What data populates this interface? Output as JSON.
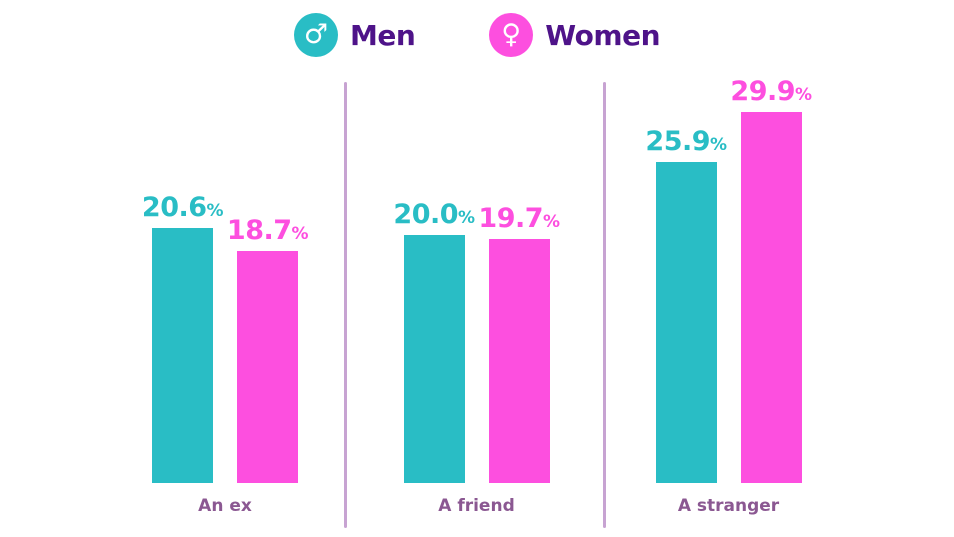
{
  "legend": {
    "items": [
      {
        "label": "Men",
        "icon": "male-icon",
        "symbol": "♂",
        "color": "#29bdc5"
      },
      {
        "label": "Women",
        "icon": "female-icon",
        "symbol": "♀",
        "color": "#fd4fdf"
      }
    ]
  },
  "chart_data": {
    "type": "bar",
    "categories": [
      "An ex",
      "A friend",
      "A stranger"
    ],
    "series": [
      {
        "name": "Men",
        "color": "#29bdc5",
        "values": [
          20.6,
          20.0,
          25.9
        ]
      },
      {
        "name": "Women",
        "color": "#fd4fdf",
        "values": [
          18.7,
          19.7,
          29.9
        ]
      }
    ],
    "value_suffix": "%",
    "value_decimals": 1,
    "ylim": [
      0,
      32
    ],
    "grid": false,
    "legend_position": "top-center",
    "accent_colors": {
      "men": "#29bdc5",
      "women": "#fd4fdf",
      "legend_text": "#4e1389",
      "category_text": "#8b5892",
      "divider": "#c7a3d2"
    }
  }
}
